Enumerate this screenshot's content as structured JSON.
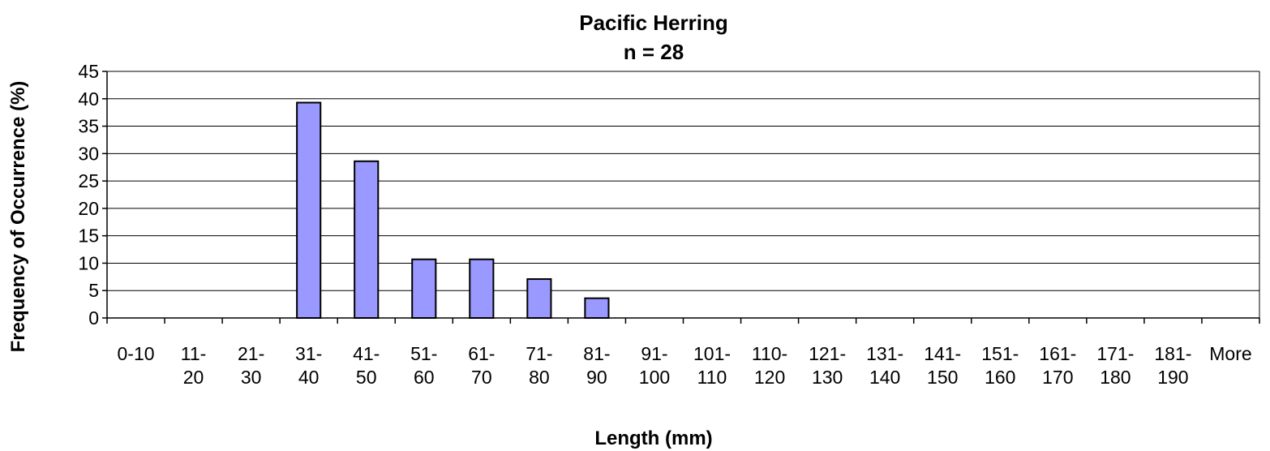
{
  "chart_data": {
    "type": "bar",
    "title": "Pacific Herring",
    "subtitle": "n = 28",
    "xlabel": "Length (mm)",
    "ylabel": "Frequency of Occurrence (%)",
    "ylim": [
      0,
      45
    ],
    "yticks": [
      0,
      5,
      10,
      15,
      20,
      25,
      30,
      35,
      40,
      45
    ],
    "grid": true,
    "categories": [
      [
        "0-10"
      ],
      [
        "11-",
        "20"
      ],
      [
        "21-",
        "30"
      ],
      [
        "31-",
        "40"
      ],
      [
        "41-",
        "50"
      ],
      [
        "51-",
        "60"
      ],
      [
        "61-",
        "70"
      ],
      [
        "71-",
        "80"
      ],
      [
        "81-",
        "90"
      ],
      [
        "91-",
        "100"
      ],
      [
        "101-",
        "110"
      ],
      [
        "110-",
        "120"
      ],
      [
        "121-",
        "130"
      ],
      [
        "131-",
        "140"
      ],
      [
        "141-",
        "150"
      ],
      [
        "151-",
        "160"
      ],
      [
        "161-",
        "170"
      ],
      [
        "171-",
        "180"
      ],
      [
        "181-",
        "190"
      ],
      [
        "More"
      ]
    ],
    "values": [
      0,
      0,
      0,
      39.3,
      28.6,
      10.7,
      10.7,
      7.1,
      3.6,
      0,
      0,
      0,
      0,
      0,
      0,
      0,
      0,
      0,
      0,
      0
    ],
    "bar_color": "#9999FF"
  }
}
